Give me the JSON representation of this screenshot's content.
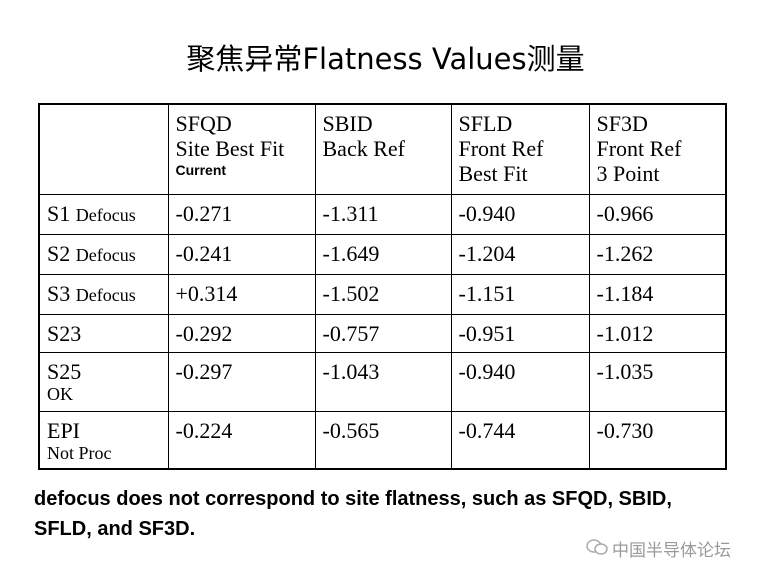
{
  "title": "聚焦异常Flatness Values测量",
  "table": {
    "header": [
      [
        "SFQD",
        "Site Best Fit",
        "Current"
      ],
      [
        "SBID",
        "Back Ref"
      ],
      [
        "SFLD",
        "Front Ref",
        "Best Fit"
      ],
      [
        "SF3D",
        "Front Ref",
        "3 Point"
      ]
    ],
    "rows": [
      {
        "label": "S1",
        "sub": "Defocus",
        "cells": [
          "-0.271",
          "-1.311",
          "-0.940",
          "-0.966"
        ]
      },
      {
        "label": "S2",
        "sub": "Defocus",
        "cells": [
          "-0.241",
          "-1.649",
          "-1.204",
          "-1.262"
        ]
      },
      {
        "label": "S3",
        "sub": "Defocus",
        "cells": [
          "+0.314",
          "-1.502",
          "-1.151",
          "-1.184"
        ]
      },
      {
        "label": "S23",
        "cells": [
          "-0.292",
          "-0.757",
          "-0.951",
          "-1.012"
        ]
      },
      {
        "label": "S25",
        "sub": "OK",
        "cells": [
          "-0.297",
          "-1.043",
          "-0.940",
          "-1.035"
        ]
      },
      {
        "label": "EPI",
        "sub": "Not Proc",
        "cells": [
          "-0.224",
          "-0.565",
          "-0.744",
          "-0.730"
        ]
      }
    ]
  },
  "note": "defocus does not correspond to site flatness, such as SFQD, SBID, SFLD, and SF3D.",
  "watermark": "中国半导体论坛"
}
